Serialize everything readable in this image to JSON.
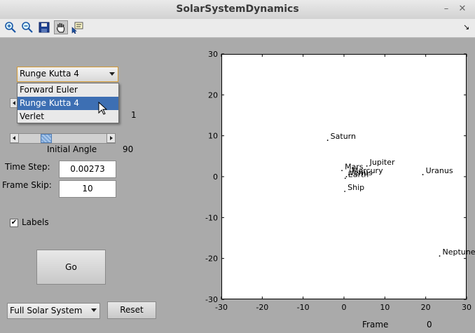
{
  "window": {
    "title": "SolarSystemDynamics",
    "minimize_glyph": "–",
    "close_glyph": "✕"
  },
  "toolbar": {
    "buttons": [
      {
        "icon": "zoom-in-icon"
      },
      {
        "icon": "zoom-out-icon"
      },
      {
        "icon": "save-icon"
      },
      {
        "icon": "pan-hand-icon",
        "active": true
      },
      {
        "icon": "data-cursor-icon"
      }
    ],
    "overflow_glyph": "↘"
  },
  "controls": {
    "method": {
      "selected": "Runge Kutta 4",
      "options": [
        "Forward Euler",
        "Runge Kutta 4",
        "Verlet"
      ],
      "highlighted_option": "Runge Kutta 4"
    },
    "hidden_slider_value": "1",
    "initial_angle": {
      "label": "Initial Angle",
      "value": "90",
      "thumb_fraction": 0.28
    },
    "time_step": {
      "label": "Time Step:",
      "value": "0.00273"
    },
    "frame_skip": {
      "label": "Frame Skip:",
      "value": "10"
    },
    "labels_checkbox": {
      "label": "Labels",
      "checked": true,
      "check_glyph": "✔"
    },
    "go_button": "Go",
    "preset": {
      "selected": "Full Solar System"
    },
    "reset_button": "Reset",
    "frame": {
      "label": "Frame",
      "value": "0"
    }
  },
  "chart_data": {
    "type": "scatter",
    "xlim": [
      -30,
      30
    ],
    "ylim": [
      -30,
      30
    ],
    "xticks": [
      -30,
      -20,
      -10,
      0,
      10,
      20,
      30
    ],
    "yticks": [
      -30,
      -20,
      -10,
      0,
      10,
      20,
      30
    ],
    "grid": false,
    "points": [
      {
        "label": "Saturn",
        "x": -4.0,
        "y": 8.9
      },
      {
        "label": "Jupiter",
        "x": 5.6,
        "y": 2.6
      },
      {
        "label": "Mars",
        "x": -0.5,
        "y": 1.5
      },
      {
        "label": "Mercury",
        "x": 1.2,
        "y": 0.5
      },
      {
        "label": "Venus",
        "x": 0.6,
        "y": 0.0
      },
      {
        "label": "Earth",
        "x": 0.3,
        "y": -0.4
      },
      {
        "label": "Ship",
        "x": 0.2,
        "y": -3.6
      },
      {
        "label": "Uranus",
        "x": 19.3,
        "y": 0.5
      },
      {
        "label": "Neptune",
        "x": 23.4,
        "y": -19.4
      }
    ]
  }
}
